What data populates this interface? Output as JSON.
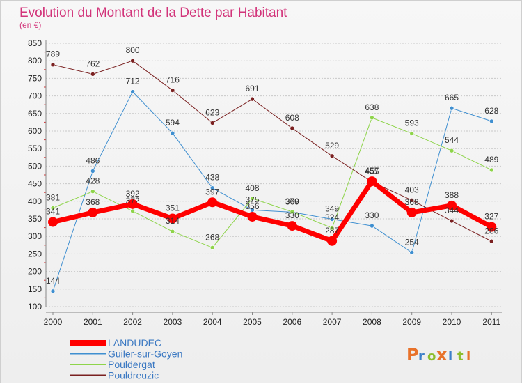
{
  "title": "Evolution du Montant de la Dette par Habitant",
  "subtitle": "(en €)",
  "brand": {
    "letters": [
      "P",
      "r",
      "o",
      "x",
      "i",
      "t",
      "i"
    ],
    "colors": [
      "#e8722a",
      "#3b7fc9",
      "#8dbd2e",
      "#e8722a",
      "#3b7fc9",
      "#8dbd2e",
      "#e8722a"
    ]
  },
  "chart_data": {
    "type": "line",
    "title": "Evolution du Montant de la Dette par Habitant",
    "ylabel": "(en €)",
    "x": [
      "2000",
      "2001",
      "2002",
      "2003",
      "2004",
      "2005",
      "2006",
      "2007",
      "2008",
      "2009",
      "2010",
      "2011"
    ],
    "ylim": [
      100,
      850
    ],
    "yticks": [
      100,
      150,
      200,
      250,
      300,
      350,
      400,
      450,
      500,
      550,
      600,
      650,
      700,
      750,
      800,
      850
    ],
    "grid": "horizontal",
    "legend_position": "bottom-left",
    "series": [
      {
        "name": "LANDUDEC",
        "color": "#ff0000",
        "width": 7,
        "marker": 7,
        "values": [
          341,
          368,
          392,
          351,
          397,
          356,
          330,
          287,
          457,
          368,
          388,
          327
        ],
        "labels": [
          "341",
          "368",
          "392",
          "351",
          "397",
          "356",
          "330",
          "287",
          "457",
          "368",
          "388",
          "327"
        ]
      },
      {
        "name": "Guiler-sur-Goyen",
        "color": "#3f8fd0",
        "width": 1,
        "marker": 3,
        "values": [
          144,
          486,
          712,
          594,
          438,
          375,
          369,
          349,
          330,
          254,
          665,
          628
        ],
        "labels": [
          "144",
          "486",
          "712",
          "594",
          "438",
          "375",
          "369",
          "349",
          "330",
          "254",
          "665",
          "628"
        ]
      },
      {
        "name": "Pouldergat",
        "color": "#8ed44a",
        "width": 1,
        "marker": 3,
        "values": [
          381,
          428,
          372,
          314,
          268,
          408,
          370,
          324,
          638,
          593,
          544,
          489
        ],
        "labels": [
          "381",
          "428",
          "372",
          "314",
          "268",
          "408",
          "370",
          "324",
          "638",
          "593",
          "544",
          "489"
        ]
      },
      {
        "name": "Pouldreuzic",
        "color": "#7a2020",
        "width": 1,
        "marker": 3,
        "values": [
          789,
          762,
          800,
          716,
          623,
          691,
          608,
          529,
          455,
          403,
          344,
          286
        ],
        "labels": [
          "789",
          "762",
          "800",
          "716",
          "623",
          "691",
          "608",
          "529",
          "455",
          "403",
          "344",
          "286"
        ]
      }
    ]
  }
}
